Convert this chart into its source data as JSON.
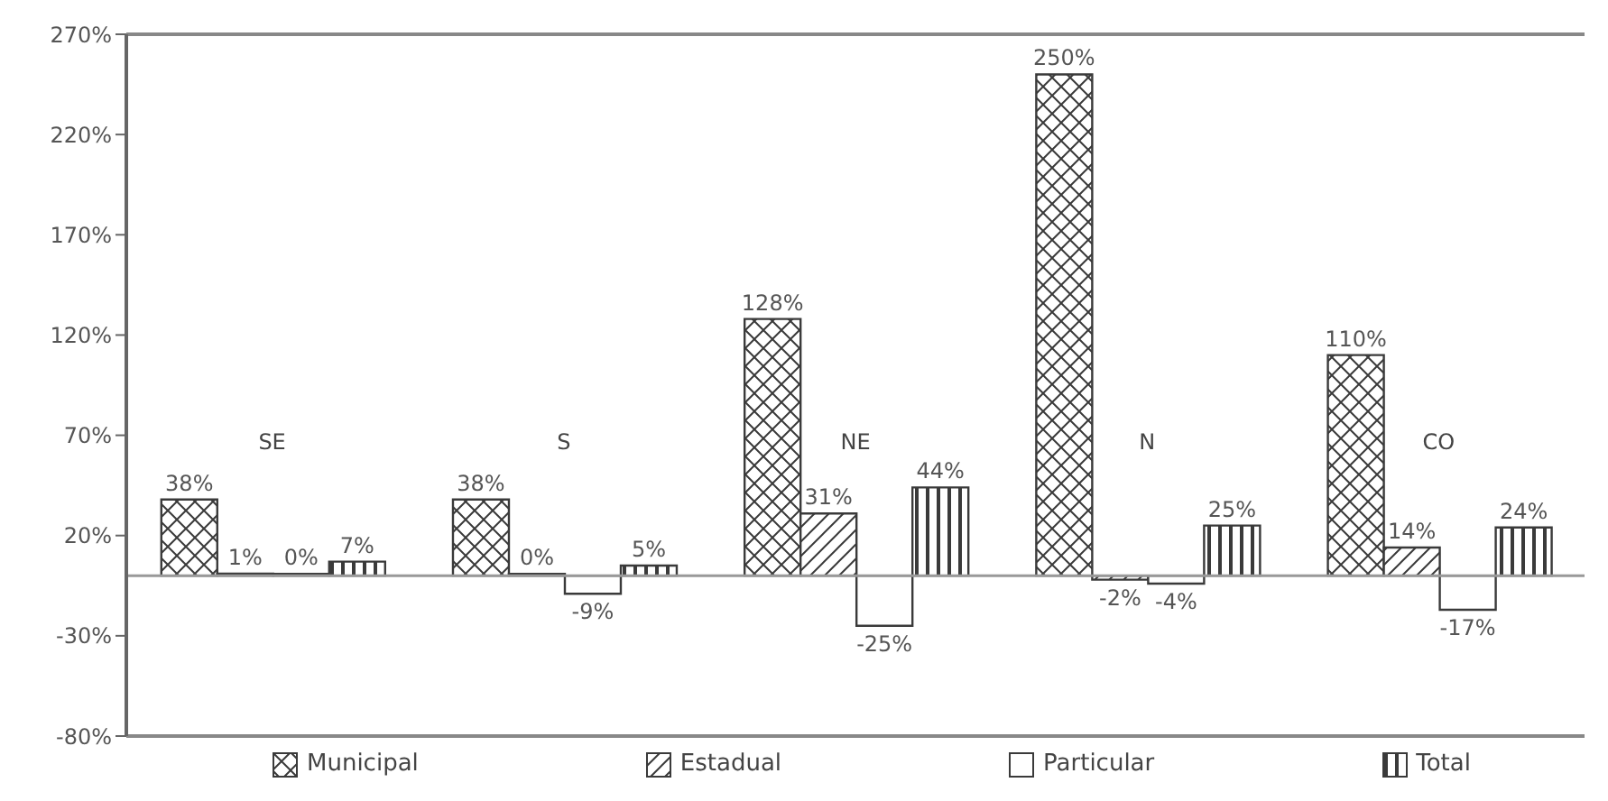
{
  "chart_data": {
    "type": "bar",
    "categories": [
      "SE",
      "S",
      "NE",
      "N",
      "CO"
    ],
    "series": [
      {
        "name": "Municipal",
        "color": "#3a3a3a",
        "values": [
          38,
          38,
          128,
          250,
          110
        ],
        "value_labels": [
          "38%",
          "38%",
          "128%",
          "250%",
          "110%"
        ]
      },
      {
        "name": "Estadual",
        "color": "#3a3a3a",
        "values": [
          1,
          0,
          31,
          -2,
          14
        ],
        "value_labels": [
          "1%",
          "0%",
          "31%",
          "-2%",
          "14%"
        ]
      },
      {
        "name": "Particular",
        "color": "#3a3a3a",
        "values": [
          0,
          -9,
          -25,
          -4,
          -17
        ],
        "value_labels": [
          "0%",
          "-9%",
          "-25%",
          "-4%",
          "-17%"
        ]
      },
      {
        "name": "Total",
        "color": "#3a3a3a",
        "values": [
          7,
          5,
          44,
          25,
          24
        ],
        "value_labels": [
          "7%",
          "5%",
          "44%",
          "25%",
          "24%"
        ]
      }
    ],
    "ylim": [
      -80,
      270
    ],
    "yticks": [
      {
        "value": -80,
        "label": "-80%"
      },
      {
        "value": -30,
        "label": "-30%"
      },
      {
        "value": 20,
        "label": "20%"
      },
      {
        "value": 70,
        "label": "70%"
      },
      {
        "value": 120,
        "label": "120%"
      },
      {
        "value": 170,
        "label": "170%"
      },
      {
        "value": 220,
        "label": "220%"
      },
      {
        "value": 270,
        "label": "270%"
      }
    ],
    "grid": false,
    "legend": "bottom"
  }
}
